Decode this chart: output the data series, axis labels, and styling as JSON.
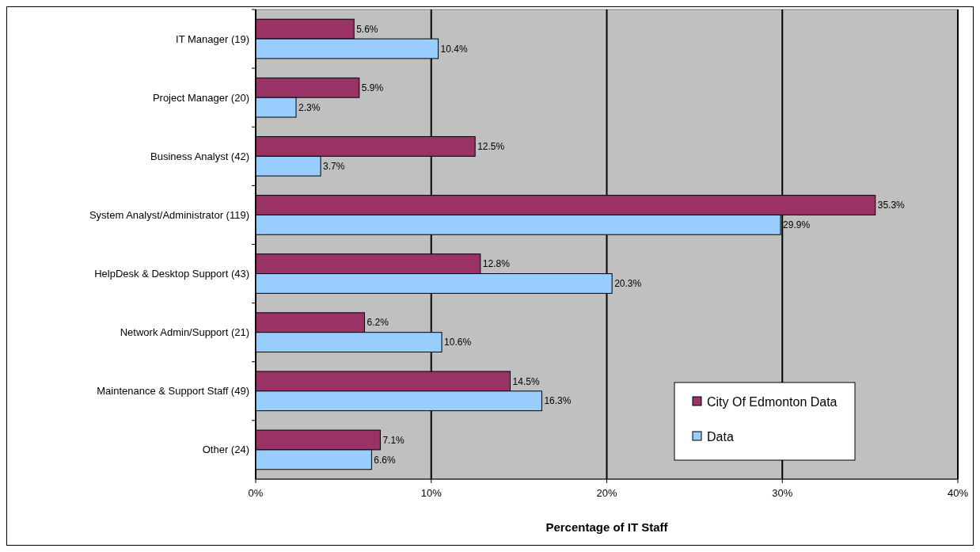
{
  "chart_data": {
    "type": "bar",
    "orientation": "horizontal",
    "xlabel": "Percentage of IT Staff",
    "categories": [
      "IT Manager (19)",
      "Project Manager (20)",
      "Business Analyst (42)",
      "System Analyst/Administrator (119)",
      "HelpDesk & Desktop Support (43)",
      "Network Admin/Support (21)",
      "Maintenance & Support Staff (49)",
      "Other (24)"
    ],
    "series": [
      {
        "name": "City Of Edmonton Data",
        "color": "#993366",
        "values": [
          5.6,
          5.9,
          12.5,
          35.3,
          12.8,
          6.2,
          14.5,
          7.1
        ],
        "value_labels": [
          "5.6%",
          "5.9%",
          "12.5%",
          "35.3%",
          "12.8%",
          "6.2%",
          "14.5%",
          "7.1%"
        ]
      },
      {
        "name": "Data",
        "color": "#99ccff",
        "values": [
          10.4,
          2.3,
          3.7,
          29.9,
          20.3,
          10.6,
          16.3,
          6.6
        ],
        "value_labels": [
          "10.4%",
          "2.3%",
          "3.7%",
          "29.9%",
          "20.3%",
          "10.6%",
          "16.3%",
          "6.6%"
        ]
      }
    ],
    "xlim": [
      0,
      40
    ],
    "xticks": [
      {
        "value": 0,
        "label": "0%"
      },
      {
        "value": 10,
        "label": "10%"
      },
      {
        "value": 20,
        "label": "20%"
      },
      {
        "value": 30,
        "label": "30%"
      },
      {
        "value": 40,
        "label": "40%"
      }
    ],
    "grid": "x",
    "legend": "bottom right"
  }
}
